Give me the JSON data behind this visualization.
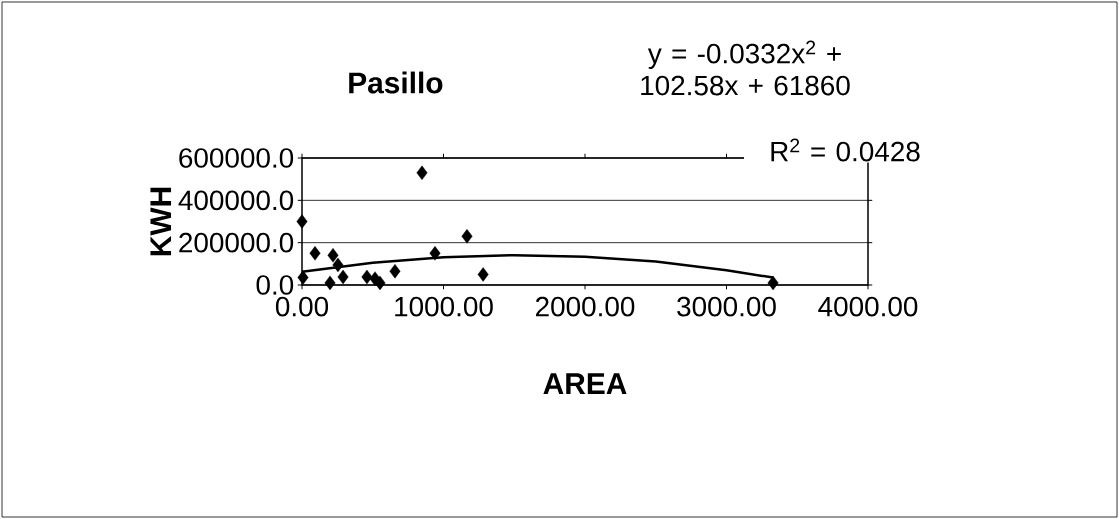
{
  "chart_data": {
    "type": "scatter",
    "title": "Pasillo",
    "xlabel": "AREA",
    "ylabel": "KWH",
    "series": [
      {
        "color": "#000000",
        "marker": "diamond",
        "x": [
          0,
          848,
          1166,
          940,
          1280,
          92,
          219,
          254,
          7,
          198,
          290,
          459,
          551,
          657,
          516,
          3329
        ],
        "values": [
          300000,
          530000,
          230000,
          150000,
          50000,
          150000,
          140000,
          95000,
          35000,
          10000,
          38000,
          38000,
          10000,
          65000,
          30000,
          10000
        ]
      },
      {
        "type": "line",
        "color": "#000000",
        "marker": "none",
        "line_style": "solid",
        "x": [
          0,
          500,
          1000,
          1500,
          2000,
          2500,
          3000,
          3329
        ],
        "values": [
          62000,
          105000,
          131000,
          141000,
          134000,
          111000,
          70000,
          35000
        ]
      }
    ],
    "xlim": [
      0,
      4000
    ],
    "xticks": [
      {
        "value": 0,
        "label": "0.00"
      },
      {
        "value": 1000,
        "label": "1000.00"
      },
      {
        "value": 2000,
        "label": "2000.00"
      },
      {
        "value": 3000,
        "label": "3000.00"
      },
      {
        "value": 4000,
        "label": "4000.00"
      }
    ],
    "ylim": [
      0,
      600000
    ],
    "yticks": [
      {
        "value": 0,
        "label": "0.0"
      },
      {
        "value": 200000,
        "label": "200000.0"
      },
      {
        "value": 400000,
        "label": "400000.0"
      },
      {
        "value": 600000,
        "label": "600000.0"
      }
    ],
    "grid": "y",
    "annotations": [
      "y = -0.0332x$^{2}$ + 102.58x + 61860",
      "R$^{2}$ = 0.0428"
    ]
  }
}
